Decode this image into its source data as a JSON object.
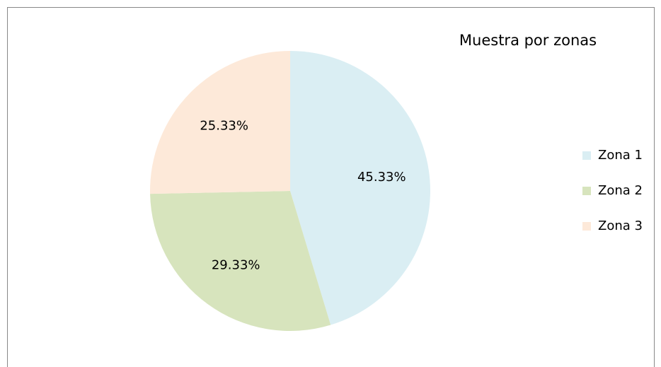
{
  "chart_data": {
    "type": "pie",
    "title": "Muestra por zonas",
    "categories": [
      "Zona 1",
      "Zona 2",
      "Zona 3"
    ],
    "values": [
      45.33,
      29.33,
      25.33
    ],
    "value_labels": [
      "45.33%",
      "29.33%",
      "25.33%"
    ],
    "colors": [
      "#daeef3",
      "#d7e4bd",
      "#fde9d9"
    ],
    "legend": "right"
  }
}
